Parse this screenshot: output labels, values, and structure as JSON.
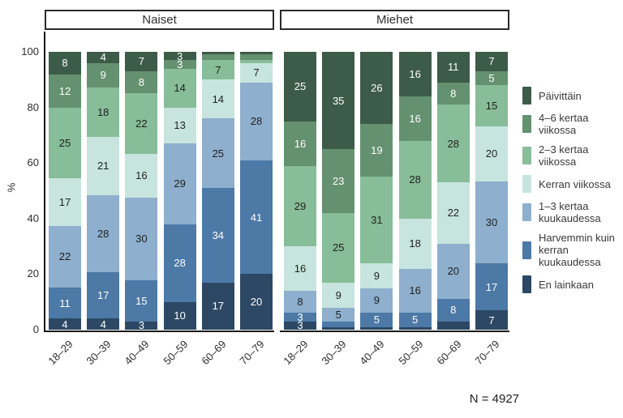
{
  "figure": {
    "y_axis_label": "%",
    "n_label": "N = 4927"
  },
  "chart_data": {
    "type": "bar",
    "stacked": true,
    "unit": "percent",
    "ylabel": "%",
    "ylim": [
      0,
      100
    ],
    "y_ticks": [
      0,
      20,
      40,
      60,
      80,
      100
    ],
    "grid": false,
    "legend_position": "right",
    "note": "N = 4927",
    "categories": [
      "18–29",
      "30–39",
      "40–49",
      "50–59",
      "60–69",
      "70–79"
    ],
    "series_meta": [
      {
        "name": "Päivittäin",
        "color": "#3d5b49",
        "label_color": "#ffffff"
      },
      {
        "name": "4–6 kertaa viikossa",
        "color": "#649170",
        "label_color": "#ffffff"
      },
      {
        "name": "2–3 kertaa viikossa",
        "color": "#87bd98",
        "label_color": "#1f1f1f"
      },
      {
        "name": "Kerran viikossa",
        "color": "#c7e5de",
        "label_color": "#1f1f1f"
      },
      {
        "name": "1–3 kertaa kuukaudessa",
        "color": "#8eafcd",
        "label_color": "#1f1f1f"
      },
      {
        "name": "Harvemmin kuin kerran kuukaudessa",
        "color": "#4c79a6",
        "label_color": "#ffffff"
      },
      {
        "name": "En lainkaan",
        "color": "#2c4864",
        "label_color": "#ffffff"
      }
    ],
    "panels": [
      {
        "title": "Naiset",
        "series": [
          {
            "name": "Päivittäin",
            "values": [
              8,
              4,
              7,
              3,
              1,
              1
            ],
            "labels": [
              "8",
              "4",
              "7",
              "3",
              "",
              ""
            ]
          },
          {
            "name": "4–6 kertaa viikossa",
            "values": [
              12,
              9,
              8,
              3,
              2,
              2
            ],
            "labels": [
              "12",
              "9",
              "8",
              "3",
              "",
              ""
            ]
          },
          {
            "name": "2–3 kertaa viikossa",
            "values": [
              25,
              18,
              22,
              14,
              7,
              1
            ],
            "labels": [
              "25",
              "18",
              "22",
              "14",
              "7",
              ""
            ]
          },
          {
            "name": "Kerran viikossa",
            "values": [
              17,
              21,
              16,
              13,
              14,
              7
            ],
            "labels": [
              "17",
              "21",
              "16",
              "13",
              "14",
              "7"
            ]
          },
          {
            "name": "1–3 kertaa kuukaudessa",
            "values": [
              22,
              28,
              30,
              29,
              25,
              28
            ],
            "labels": [
              "22",
              "28",
              "30",
              "29",
              "25",
              "28"
            ]
          },
          {
            "name": "Harvemmin kuin kerran kuukaudessa",
            "values": [
              11,
              17,
              15,
              28,
              34,
              41
            ],
            "labels": [
              "11",
              "17",
              "15",
              "28",
              "34",
              "41"
            ]
          },
          {
            "name": "En lainkaan",
            "values": [
              4,
              4,
              3,
              10,
              17,
              20
            ],
            "labels": [
              "4",
              "4",
              "3",
              "10",
              "17",
              "20"
            ]
          }
        ]
      },
      {
        "title": "Miehet",
        "series": [
          {
            "name": "Päivittäin",
            "values": [
              25,
              35,
              26,
              16,
              11,
              7
            ],
            "labels": [
              "25",
              "35",
              "26",
              "16",
              "11",
              "7"
            ]
          },
          {
            "name": "4–6 kertaa viikossa",
            "values": [
              16,
              23,
              19,
              16,
              8,
              5
            ],
            "labels": [
              "16",
              "23",
              "19",
              "16",
              "8",
              "5"
            ]
          },
          {
            "name": "2–3 kertaa viikossa",
            "values": [
              29,
              25,
              31,
              28,
              28,
              15
            ],
            "labels": [
              "29",
              "25",
              "31",
              "28",
              "28",
              "15"
            ]
          },
          {
            "name": "Kerran viikossa",
            "values": [
              16,
              9,
              9,
              18,
              22,
              20
            ],
            "labels": [
              "16",
              "9",
              "9",
              "18",
              "22",
              "20"
            ]
          },
          {
            "name": "1–3 kertaa kuukaudessa",
            "values": [
              8,
              5,
              9,
              16,
              20,
              30
            ],
            "labels": [
              "8",
              "5",
              "9",
              "16",
              "20",
              "30"
            ]
          },
          {
            "name": "Harvemmin kuin kerran kuukaudessa",
            "values": [
              3,
              2,
              5,
              5,
              8,
              17
            ],
            "labels": [
              "3",
              "",
              "5",
              "5",
              "8",
              "17"
            ]
          },
          {
            "name": "En lainkaan",
            "values": [
              3,
              1,
              1,
              1,
              3,
              7
            ],
            "labels": [
              "3",
              "",
              "",
              "",
              "",
              "7"
            ]
          }
        ]
      }
    ]
  }
}
